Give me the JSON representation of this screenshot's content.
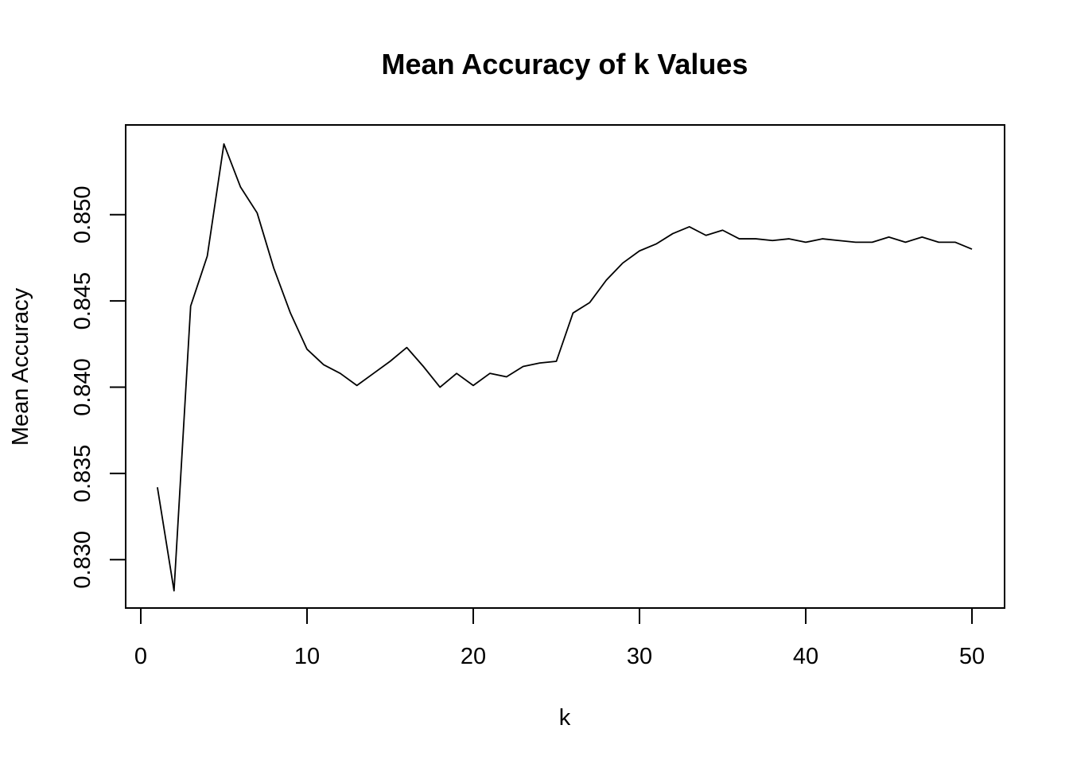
{
  "chart_data": {
    "type": "line",
    "title": "Mean Accuracy of k Values",
    "xlabel": "k",
    "ylabel": "Mean Accuracy",
    "xlim": [
      0,
      50
    ],
    "ylim": [
      0.8272,
      0.8552
    ],
    "xticks": [
      0,
      10,
      20,
      30,
      40,
      50
    ],
    "xtick_labels": [
      "0",
      "10",
      "20",
      "30",
      "40",
      "50"
    ],
    "yticks": [
      0.83,
      0.835,
      0.84,
      0.845,
      0.85
    ],
    "ytick_labels": [
      "0.830",
      "0.835",
      "0.840",
      "0.845",
      "0.850"
    ],
    "grid": false,
    "series": [
      {
        "x": [
          1,
          2,
          3,
          4,
          5,
          6,
          7,
          8,
          9,
          10,
          11,
          12,
          13,
          14,
          15,
          16,
          17,
          18,
          19,
          20,
          21,
          22,
          23,
          24,
          25,
          26,
          27,
          28,
          29,
          30,
          31,
          32,
          33,
          34,
          35,
          36,
          37,
          38,
          39,
          40,
          41,
          42,
          43,
          44,
          45,
          46,
          47,
          48,
          49,
          50
        ],
        "values": [
          0.8342,
          0.8282,
          0.8447,
          0.8476,
          0.8541,
          0.8516,
          0.8501,
          0.8469,
          0.8443,
          0.8422,
          0.8413,
          0.8408,
          0.8401,
          0.8408,
          0.8415,
          0.8423,
          0.8412,
          0.84,
          0.8408,
          0.8401,
          0.8408,
          0.8406,
          0.8412,
          0.8414,
          0.8415,
          0.8443,
          0.8449,
          0.8462,
          0.8472,
          0.8479,
          0.8483,
          0.8489,
          0.8493,
          0.8488,
          0.8491,
          0.8486,
          0.8486,
          0.8485,
          0.8486,
          0.8484,
          0.8486,
          0.8485,
          0.8484,
          0.8484,
          0.8487,
          0.8484,
          0.8487,
          0.8484,
          0.8484,
          0.848
        ]
      }
    ]
  }
}
